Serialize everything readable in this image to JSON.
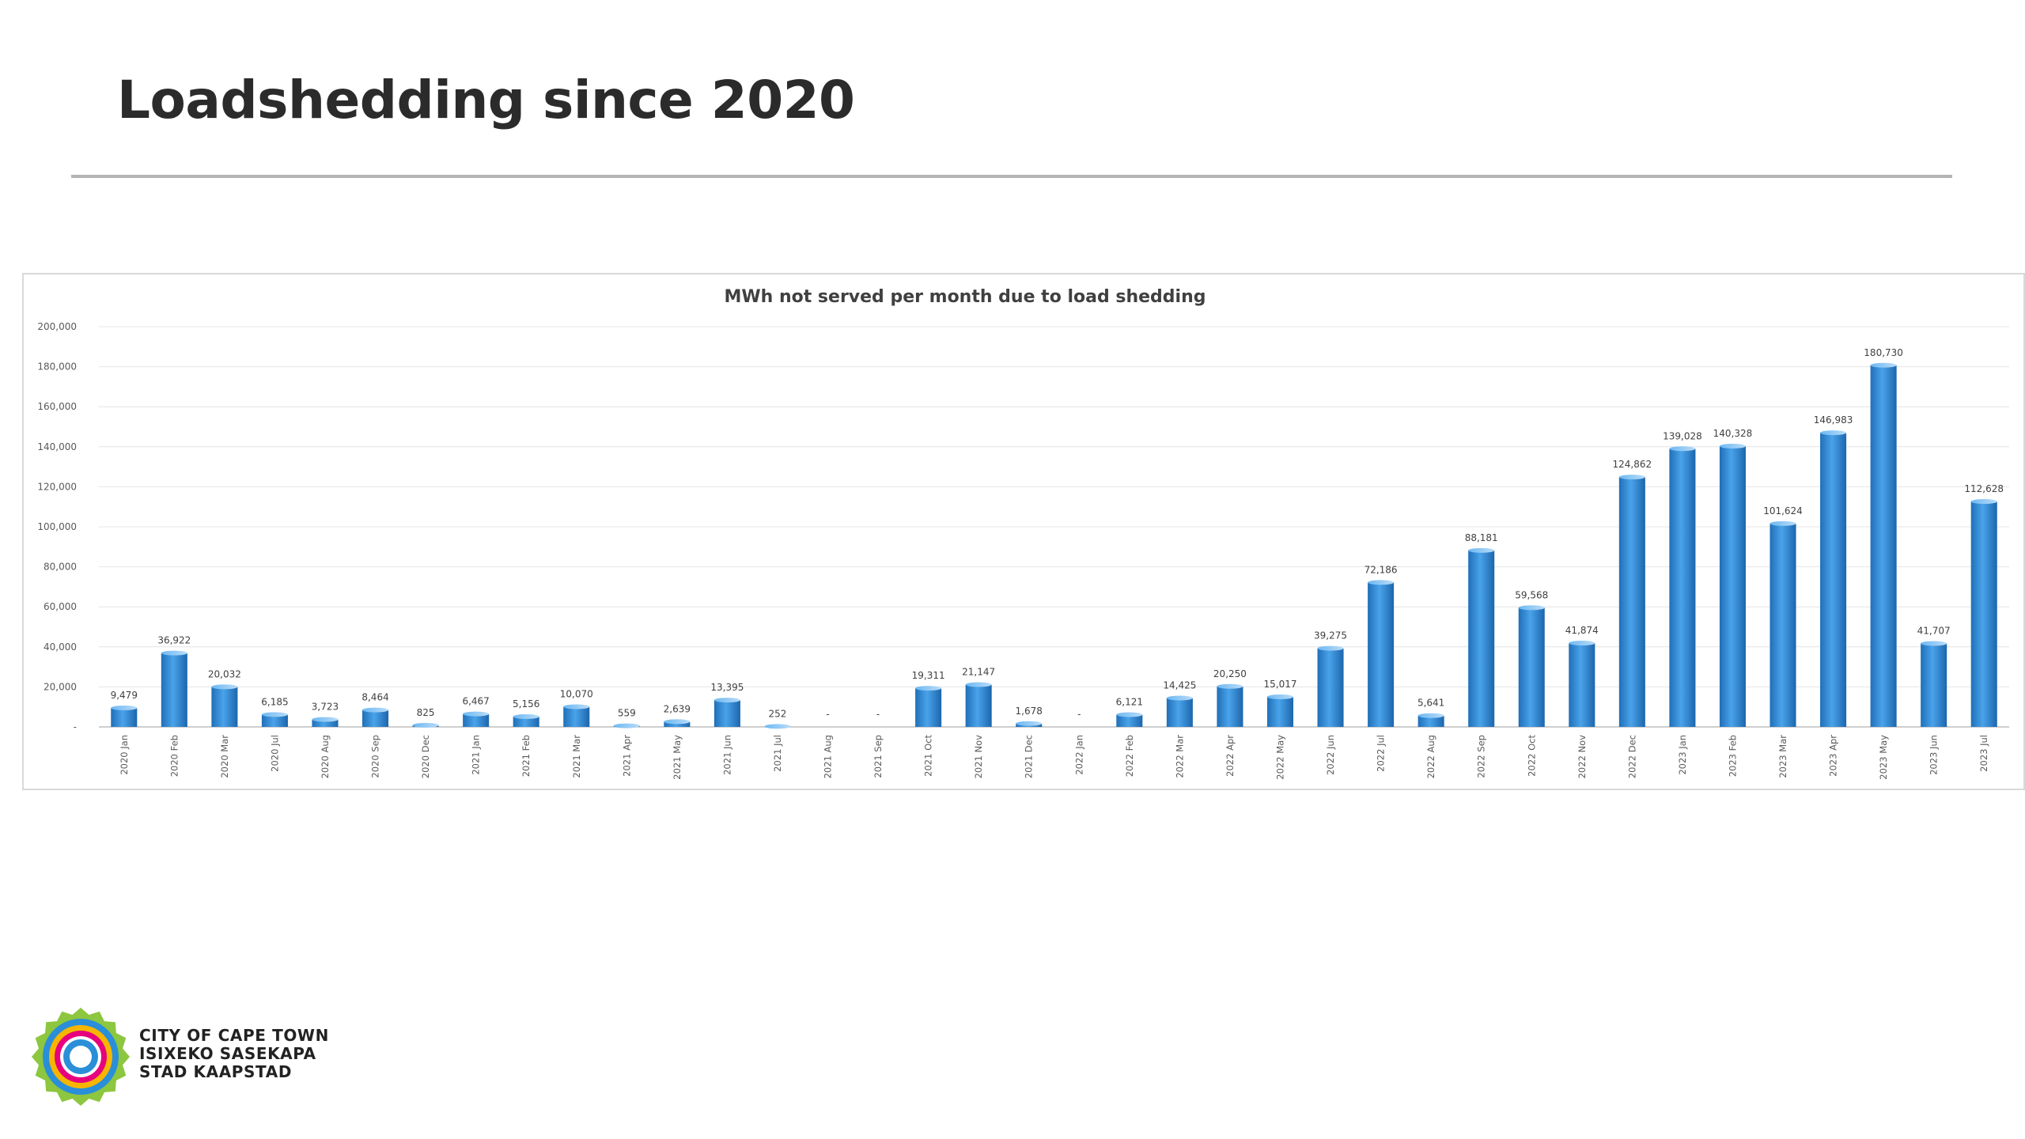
{
  "slide": {
    "title": "Loadshedding since 2020"
  },
  "logo": {
    "line1": "CITY OF CAPE TOWN",
    "line2": "ISIXEKO SASEKAPA",
    "line3": "STAD KAAPSTAD",
    "colors": [
      "#8dc63f",
      "#2a8fd8",
      "#e6007e",
      "#f7b500"
    ]
  },
  "chart_data": {
    "type": "bar",
    "title": "MWh not served per month due to load shedding",
    "xlabel": "",
    "ylabel": "",
    "ylim": [
      0,
      200000
    ],
    "yticks": [
      0,
      20000,
      40000,
      60000,
      80000,
      100000,
      120000,
      140000,
      160000,
      180000,
      200000
    ],
    "ytick_labels": [
      "-",
      "20,000",
      "40,000",
      "60,000",
      "80,000",
      "100,000",
      "120,000",
      "140,000",
      "160,000",
      "180,000",
      "200,000"
    ],
    "grid": true,
    "bar_color": "#3b8fd6",
    "categories": [
      "2020 Jan",
      "2020 Feb",
      "2020 Mar",
      "2020 Jul",
      "2020 Aug",
      "2020 Sep",
      "2020 Dec",
      "2021 Jan",
      "2021 Feb",
      "2021 Mar",
      "2021 Apr",
      "2021 May",
      "2021 Jun",
      "2021 Jul",
      "2021 Aug",
      "2021 Sep",
      "2021 Oct",
      "2021 Nov",
      "2021 Dec",
      "2022 Jan",
      "2022 Feb",
      "2022 Mar",
      "2022 Apr",
      "2022 May",
      "2022 Jun",
      "2022 Jul",
      "2022 Aug",
      "2022 Sep",
      "2022 Oct",
      "2022 Nov",
      "2022 Dec",
      "2023 Jan",
      "2023 Feb",
      "2023 Mar",
      "2023 Apr",
      "2023 May",
      "2023 Jun",
      "2023 Jul"
    ],
    "values": [
      9479,
      36922,
      20032,
      6185,
      3723,
      8464,
      825,
      6467,
      5156,
      10070,
      559,
      2639,
      13395,
      252,
      0,
      0,
      19311,
      21147,
      1678,
      0,
      6121,
      14425,
      20250,
      15017,
      39275,
      72186,
      5641,
      88181,
      59568,
      41874,
      124862,
      139028,
      140328,
      101624,
      146983,
      180730,
      41707,
      112628
    ],
    "data_labels": [
      "9,479",
      "36,922",
      "20,032",
      "6,185",
      "3,723",
      "8,464",
      "825",
      "6,467",
      "5,156",
      "10,070",
      "559",
      "2,639",
      "13,395",
      "252",
      "-",
      "-",
      "19,311",
      "21,147",
      "1,678",
      "-",
      "6,121",
      "14,425",
      "20,250",
      "15,017",
      "39,275",
      "72,186",
      "5,641",
      "88,181",
      "59,568",
      "41,874",
      "124,862",
      "139,028",
      "140,328",
      "101,624",
      "146,983",
      "180,730",
      "41,707",
      "112,628"
    ]
  }
}
